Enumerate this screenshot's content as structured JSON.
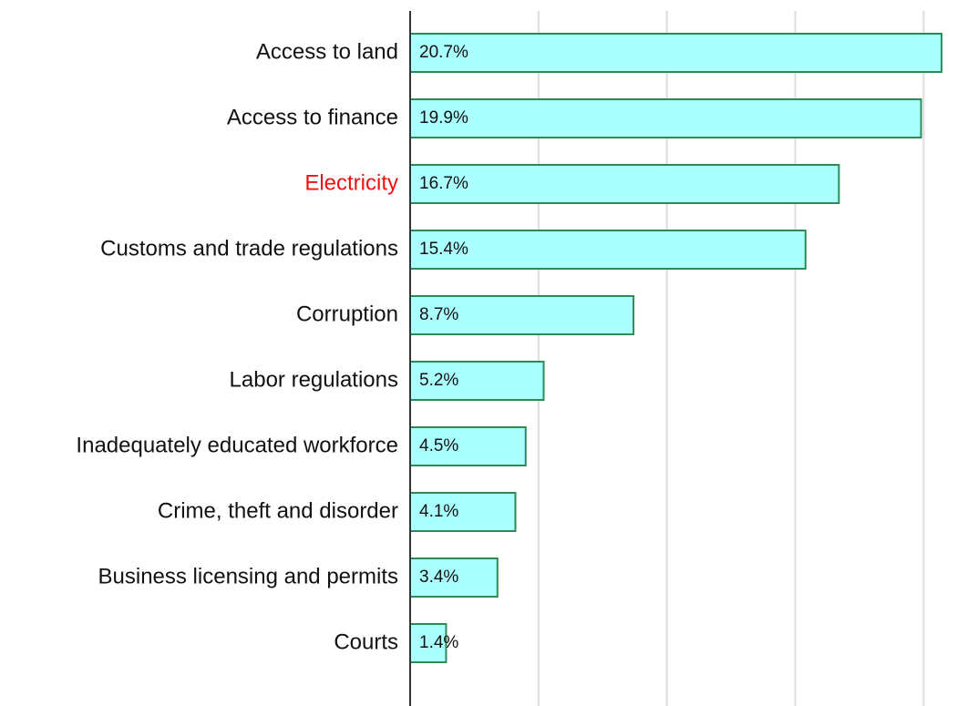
{
  "chart_data": {
    "type": "bar",
    "orientation": "horizontal",
    "categories": [
      "Access to land",
      "Access to finance",
      "Electricity",
      "Customs and trade regulations",
      "Corruption",
      "Labor regulations",
      "Inadequately educated workforce",
      "Crime, theft and disorder",
      "Business licensing and permits",
      "Courts"
    ],
    "values": [
      20.7,
      19.9,
      16.7,
      15.4,
      8.7,
      5.2,
      4.5,
      4.1,
      3.4,
      1.4
    ],
    "value_labels": [
      "20.7%",
      "19.9%",
      "16.7%",
      "15.4%",
      "8.7%",
      "5.2%",
      "4.5%",
      "4.1%",
      "3.4%",
      "1.4%"
    ],
    "label_colors": [
      "#111111",
      "#111111",
      "#ee1111",
      "#111111",
      "#111111",
      "#111111",
      "#111111",
      "#111111",
      "#111111",
      "#111111"
    ],
    "color": "#aaffff",
    "edge_color": "#2e8b57",
    "xlim": [
      0,
      21.3
    ],
    "xticks": [
      0,
      5,
      10,
      15,
      20
    ],
    "grid": true
  }
}
